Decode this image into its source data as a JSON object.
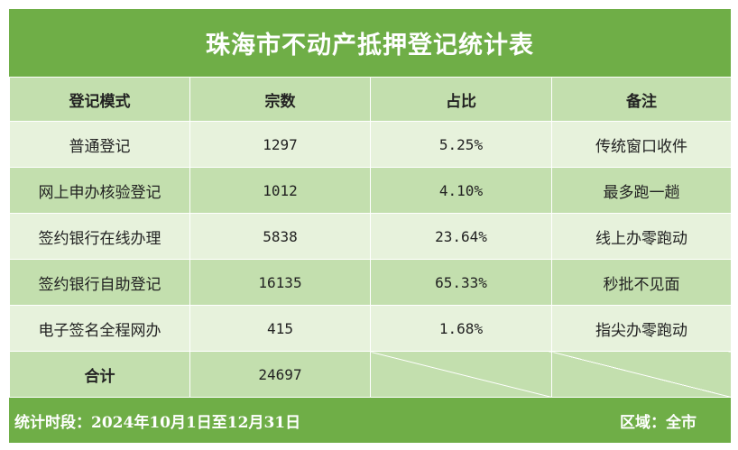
{
  "title": "珠海市不动产抵押登记统计表",
  "headers": [
    "登记模式",
    "宗数",
    "占比",
    "备注"
  ],
  "rows": [
    {
      "mode": "普通登记",
      "count": "1297",
      "ratio": "5.25%",
      "note": "传统窗口收件"
    },
    {
      "mode": "网上申办核验登记",
      "count": "1012",
      "ratio": "4.10%",
      "note": "最多跑一趟"
    },
    {
      "mode": "签约银行在线办理",
      "count": "5838",
      "ratio": "23.64%",
      "note": "线上办零跑动"
    },
    {
      "mode": "签约银行自助登记",
      "count": "16135",
      "ratio": "65.33%",
      "note": "秒批不见面"
    },
    {
      "mode": "电子签名全程网办",
      "count": "415",
      "ratio": "1.68%",
      "note": "指尖办零跑动"
    }
  ],
  "total": {
    "label": "合计",
    "count": "24697"
  },
  "footer": {
    "period": "统计时段：2024年10月1日至12月31日",
    "region": "区域：全市"
  },
  "colors": {
    "header_green": "#6fae47",
    "light_green": "#e7f2dc",
    "mid_green": "#c3dfae"
  }
}
